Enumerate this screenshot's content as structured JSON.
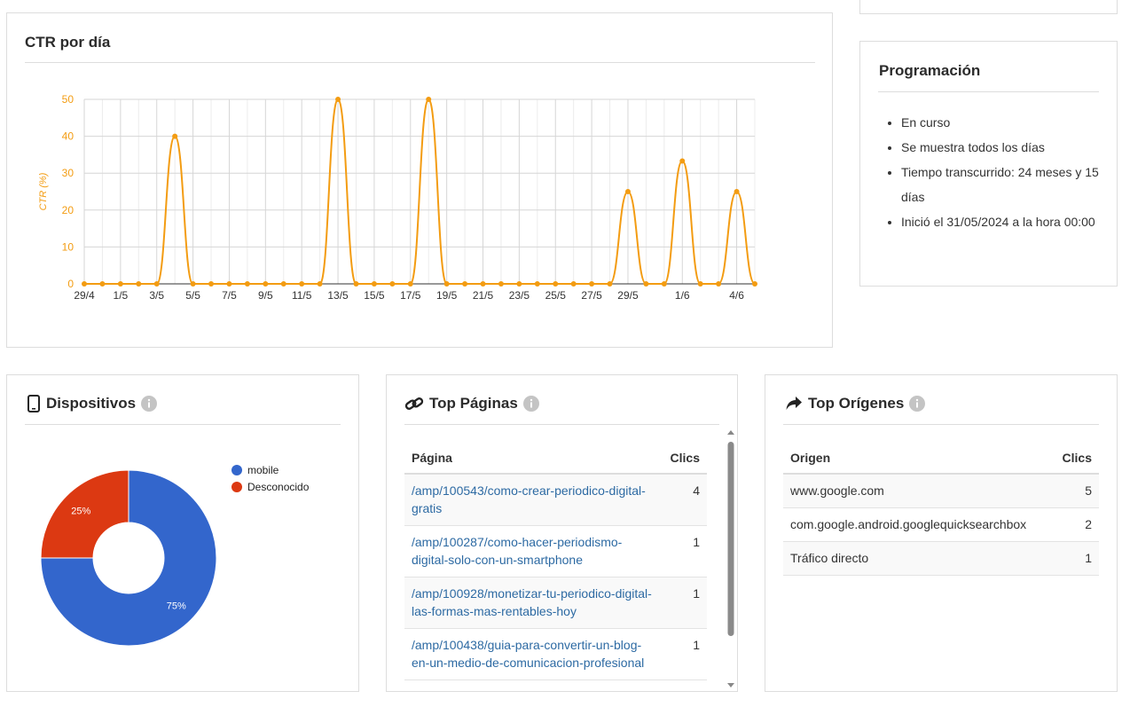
{
  "ctr_panel": {
    "title": "CTR por día",
    "chart_data": {
      "type": "line",
      "y_label": "CTR (%)",
      "categories": [
        "29/4",
        null,
        "1/5",
        null,
        "3/5",
        null,
        "5/5",
        null,
        "7/5",
        null,
        "9/5",
        null,
        "11/5",
        null,
        "13/5",
        null,
        "15/5",
        null,
        "17/5",
        null,
        "19/5",
        null,
        "21/5",
        null,
        "23/5",
        null,
        "25/5",
        null,
        "27/5",
        null,
        "29/5",
        null,
        null,
        "1/6",
        null,
        null,
        "4/6",
        null
      ],
      "values": [
        0,
        0,
        0,
        0,
        0,
        40,
        0,
        0,
        0,
        0,
        0,
        0,
        0,
        0,
        50,
        0,
        0,
        0,
        0,
        50,
        0,
        0,
        0,
        0,
        0,
        0,
        0,
        0,
        0,
        0,
        25,
        0,
        0,
        33.3,
        0,
        0,
        25,
        0
      ],
      "color": "#f39c12",
      "ylim": [
        0,
        50
      ],
      "yticks": [
        0,
        10,
        20,
        30,
        40,
        50
      ],
      "grid": true
    }
  },
  "schedule": {
    "title": "Programación",
    "items": [
      "En curso",
      "Se muestra todos los días",
      "Tiempo transcurrido: 24 meses y 15 días",
      "Inició el 31/05/2024 a la hora 00:00"
    ]
  },
  "devices": {
    "title": "Dispositivos",
    "chart_data": {
      "type": "donut",
      "categories": [
        "mobile",
        "Desconocido"
      ],
      "values": [
        75,
        25
      ],
      "value_labels": [
        "75%",
        "25%"
      ],
      "colors": [
        "#3366cc",
        "#dc3912"
      ]
    }
  },
  "top_pages": {
    "title": "Top Páginas",
    "table": {
      "columns": [
        "Página",
        "Clics"
      ],
      "rows": [
        [
          "/amp/100543/como-crear-periodico-digital-gratis",
          4
        ],
        [
          "/amp/100287/como-hacer-periodismo-digital-solo-con-un-smartphone",
          1
        ],
        [
          "/amp/100928/monetizar-tu-periodico-digital-las-formas-mas-rentables-hoy",
          1
        ],
        [
          "/amp/100438/guia-para-convertir-un-blog-en-un-medio-de-comunicacion-profesional",
          1
        ]
      ]
    }
  },
  "top_origins": {
    "title": "Top Orígenes",
    "table": {
      "columns": [
        "Origen",
        "Clics"
      ],
      "rows": [
        [
          "www.google.com",
          5
        ],
        [
          "com.google.android.googlequicksearchbox",
          2
        ],
        [
          "Tráfico directo",
          1
        ]
      ]
    }
  }
}
